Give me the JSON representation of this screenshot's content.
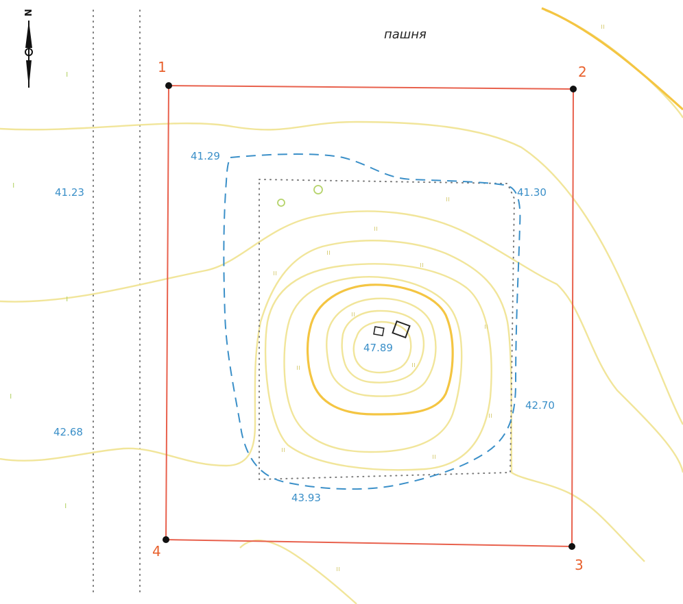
{
  "map": {
    "land_use_label": "пашня",
    "north_symbol": "N",
    "corners": [
      {
        "id": "corner-1",
        "label": "1"
      },
      {
        "id": "corner-2",
        "label": "2"
      },
      {
        "id": "corner-3",
        "label": "3"
      },
      {
        "id": "corner-4",
        "label": "4"
      }
    ],
    "elevations": [
      {
        "id": "elev-41-29",
        "value": "41.29"
      },
      {
        "id": "elev-41-23",
        "value": "41.23"
      },
      {
        "id": "elev-41-30",
        "value": "41.30"
      },
      {
        "id": "elev-47-89",
        "value": "47.89"
      },
      {
        "id": "elev-42-70",
        "value": "42.70"
      },
      {
        "id": "elev-42-68",
        "value": "42.68"
      },
      {
        "id": "elev-43-93",
        "value": "43.93"
      }
    ],
    "colors": {
      "boundary": "#e8604c",
      "contour": "#f1e59a",
      "contour_index": "#f4c542",
      "dashed_zone": "#3a8fc8",
      "elevation_text": "#3a8fc8",
      "corner_text": "#e8602c",
      "vegetation": "#b5d36a"
    }
  }
}
